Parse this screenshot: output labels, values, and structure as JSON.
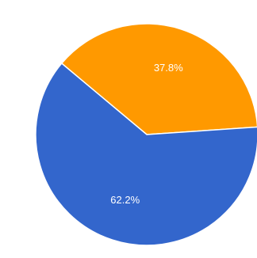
{
  "chart_data": {
    "type": "pie",
    "categories": [
      "",
      ""
    ],
    "values": [
      37.8,
      62.2
    ],
    "labels": [
      "37.8%",
      "62.2%"
    ],
    "colors": [
      "#ff9900",
      "#3366cc"
    ],
    "start_angle_deg": -50,
    "direction": "clockwise",
    "legend": "none",
    "title": ""
  }
}
